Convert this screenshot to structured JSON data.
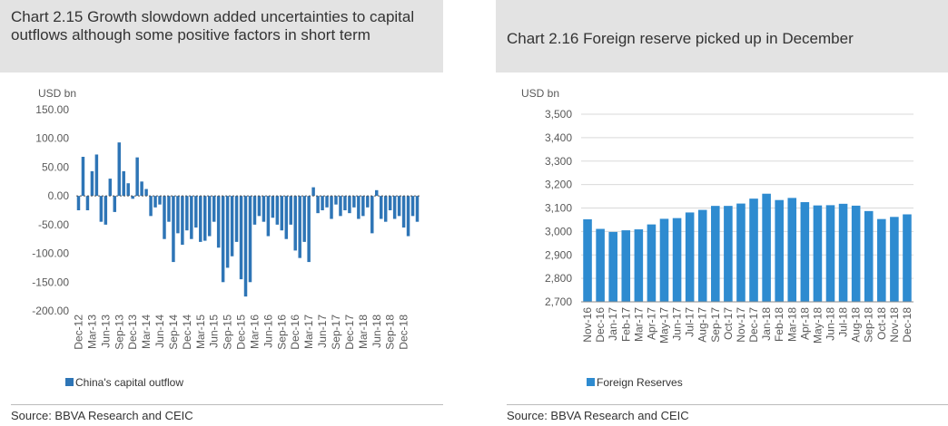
{
  "left": {
    "title": "Chart 2.15 Growth slowdown added uncertainties to capital outflows although some positive factors in short term",
    "source": "Source: BBVA Research and CEIC"
  },
  "right": {
    "title": "Chart 2.16 Foreign reserve picked up in December",
    "source": "Source: BBVA Research and CEIC"
  },
  "chart_data": [
    {
      "type": "bar",
      "unit_label": "USD bn",
      "color": "#2e75b6",
      "ylim": [
        -200,
        150
      ],
      "yticks": [
        150,
        100,
        50,
        0,
        -50,
        -100,
        -150,
        -200
      ],
      "ytick_labels": [
        "150.00",
        "100.00",
        "50.00",
        "0.00",
        "-50.00",
        "-100.00",
        "-150.00",
        "-200.00"
      ],
      "grid": false,
      "legend_position": "bottom-left",
      "x_start": "Dec-12",
      "x_labels": [
        "Dec-12",
        "Mar-13",
        "Jun-13",
        "Sep-13",
        "Dec-13",
        "Mar-14",
        "Jun-14",
        "Sep-14",
        "Dec-14",
        "Mar-15",
        "Jun-15",
        "Sep-15",
        "Dec-15",
        "Mar-16",
        "Jun-16",
        "Sep-16",
        "Dec-16",
        "Mar-17",
        "Jun-17",
        "Sep-17",
        "Dec-17",
        "Mar-18",
        "Jun-18",
        "Sep-18",
        "Dec-18"
      ],
      "series": [
        {
          "name": "China's capital outflow",
          "values": [
            -25,
            68,
            -25,
            43,
            72,
            -45,
            -50,
            30,
            -28,
            93,
            43,
            22,
            -5,
            67,
            25,
            12,
            -35,
            -20,
            -15,
            -75,
            -45,
            -115,
            -65,
            -85,
            -60,
            -75,
            -55,
            -80,
            -78,
            -70,
            -45,
            -90,
            -150,
            -125,
            -105,
            -80,
            -145,
            -175,
            -150,
            -50,
            -35,
            -45,
            -70,
            -38,
            -50,
            -60,
            -75,
            -50,
            -95,
            -108,
            -80,
            -115,
            15,
            -30,
            -25,
            -20,
            -40,
            -15,
            -35,
            -25,
            -30,
            -20,
            -40,
            -35,
            -20,
            -65,
            10,
            -40,
            -45,
            -25,
            -40,
            -35,
            -55,
            -70,
            -35,
            -45
          ]
        }
      ]
    },
    {
      "type": "bar",
      "unit_label": "USD bn",
      "color": "#2e8bd0",
      "ylim": [
        2700,
        3500
      ],
      "yticks": [
        3500,
        3400,
        3300,
        3200,
        3100,
        3000,
        2900,
        2800,
        2700
      ],
      "ytick_labels": [
        "3,500",
        "3,400",
        "3,300",
        "3,200",
        "3,100",
        "3,000",
        "2,900",
        "2,800",
        "2,700"
      ],
      "grid": true,
      "legend_position": "bottom-left",
      "categories": [
        "Nov-16",
        "Dec-16",
        "Jan-17",
        "Feb-17",
        "Mar-17",
        "Apr-17",
        "May-17",
        "Jun-17",
        "Jul-17",
        "Aug-17",
        "Sep-17",
        "Oct-17",
        "Nov-17",
        "Dec-17",
        "Jan-18",
        "Feb-18",
        "Mar-18",
        "Apr-18",
        "May-18",
        "Jun-18",
        "Jul-18",
        "Aug-18",
        "Sep-18",
        "Oct-18",
        "Nov-18",
        "Dec-18"
      ],
      "series": [
        {
          "name": "Foreign Reserves",
          "values": [
            3052,
            3011,
            2998,
            3005,
            3009,
            3030,
            3054,
            3057,
            3081,
            3092,
            3109,
            3109,
            3119,
            3140,
            3161,
            3134,
            3143,
            3125,
            3111,
            3112,
            3118,
            3110,
            3087,
            3053,
            3062,
            3073
          ]
        }
      ]
    }
  ]
}
